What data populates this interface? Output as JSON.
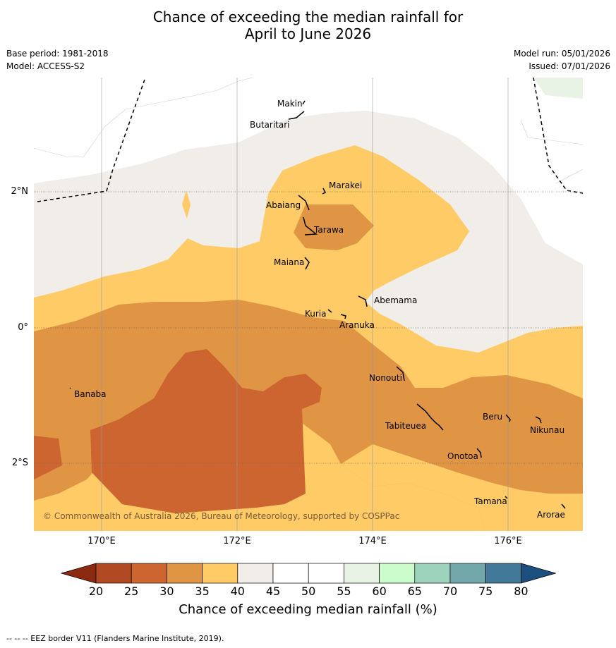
{
  "title": {
    "line1": "Chance of exceeding the median rainfall for",
    "line2": "April to June 2026"
  },
  "meta": {
    "base_period": "Base period: 1981-2018",
    "model": "Model: ACCESS-S2",
    "model_run": "Model run: 05/01/2026",
    "issued": "Issued: 07/01/2026"
  },
  "axes": {
    "lat_labels": [
      "2°N",
      "0°",
      "2°S"
    ],
    "lon_labels": [
      "170°E",
      "172°E",
      "174°E",
      "176°E"
    ]
  },
  "places": {
    "makin": "Makin",
    "butaritari": "Butaritari",
    "marakei": "Marakei",
    "abaiang": "Abaiang",
    "tarawa": "Tarawa",
    "maiana": "Maiana",
    "abemama": "Abemama",
    "kuria": "Kuria",
    "aranuka": "Aranuka",
    "nonouti": "Nonouti",
    "banaba": "Banaba",
    "beru": "Beru",
    "tabiteuea": "Tabiteuea",
    "nikunau": "Nikunau",
    "onotoa": "Onotoa",
    "tamana": "Tamana",
    "arorae": "Arorae"
  },
  "copyright": "© Commonwealth of Australia 2026, Bureau of Meteorology, supported by COSPPac",
  "colorbar": {
    "labels": [
      "20",
      "25",
      "30",
      "35",
      "40",
      "45",
      "50",
      "55",
      "60",
      "65",
      "70",
      "75",
      "80"
    ],
    "title": "Chance of exceeding median rainfall (%)",
    "colors": {
      "below20": "#8b2a10",
      "c20_25": "#b14a22",
      "c25_30": "#cc6530",
      "c30_35": "#e09545",
      "c35_40": "#fecb67",
      "c40_45": "#f1ede8",
      "c45_55": "#ffffff",
      "c55_60": "#e8f3e6",
      "c60_65": "#ccfccb",
      "c65_70": "#9dd3bc",
      "c70_75": "#72a8aa",
      "c75_80": "#437998",
      "above80": "#1a4f7e"
    }
  },
  "footnote": "--  --  -- EEZ border V11 (Flanders Marine Institute, 2019)."
}
